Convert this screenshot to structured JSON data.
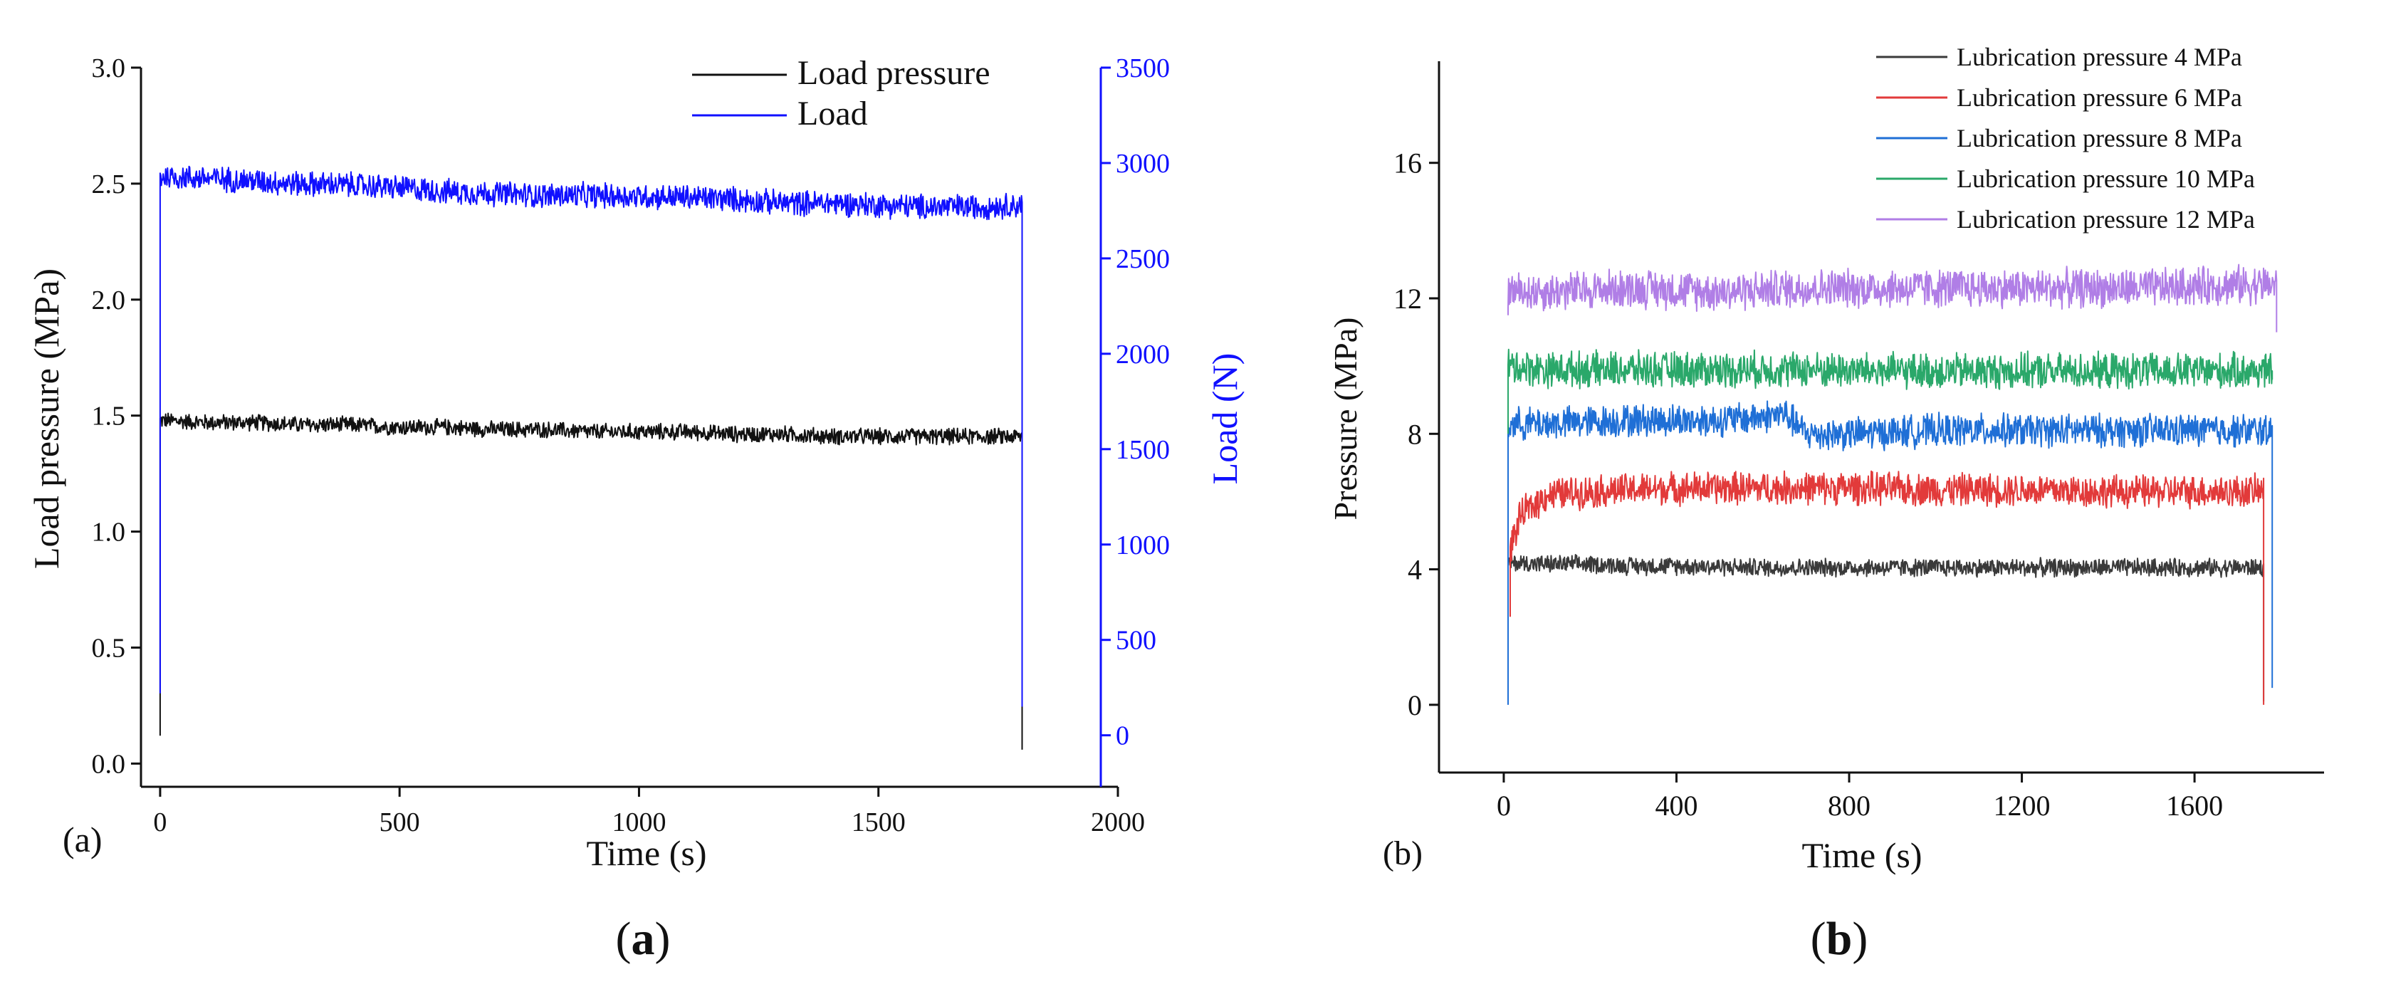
{
  "panel_labels": {
    "a_inner": "(a)",
    "b_inner": "(b)",
    "a_caption_letter": "a",
    "b_caption_letter": "b",
    "open_paren": "(",
    "close_paren": ")"
  },
  "colors": {
    "load_pressure": "#111111",
    "load": "#1010ff",
    "lub4": "#3a3a3a",
    "lub6": "#e23a3a",
    "lub8": "#1f6fd6",
    "lub10": "#2aa86a",
    "lub12": "#b07ee6",
    "right_axis": "#1010ff"
  },
  "chart_data": [
    {
      "id": "a",
      "type": "line",
      "title": "",
      "xlabel": "Time (s)",
      "ylabel": "Load pressure (MPa)",
      "y2label": "Load (N)",
      "xlim": [
        -40,
        2000
      ],
      "ylim": [
        -0.1,
        3.0
      ],
      "y2lim": [
        -270,
        3500
      ],
      "xticks": [
        0,
        500,
        1000,
        1500,
        2000
      ],
      "yticks": [
        0.0,
        0.5,
        1.0,
        1.5,
        2.0,
        2.5,
        3.0
      ],
      "ytick_labels": [
        "0.0",
        "0.5",
        "1.0",
        "1.5",
        "2.0",
        "2.5",
        "3.0"
      ],
      "y2ticks": [
        0,
        500,
        1000,
        1500,
        2000,
        2500,
        3000,
        3500
      ],
      "legend_position": "top-right",
      "series": [
        {
          "name": "Load pressure",
          "axis": "left",
          "color_key": "load_pressure",
          "x": [
            0,
            100,
            200,
            300,
            400,
            500,
            600,
            700,
            800,
            900,
            1000,
            1100,
            1200,
            1300,
            1400,
            1500,
            1600,
            1700,
            1800
          ],
          "y": [
            1.48,
            1.47,
            1.47,
            1.46,
            1.46,
            1.45,
            1.45,
            1.44,
            1.44,
            1.43,
            1.43,
            1.43,
            1.42,
            1.42,
            1.41,
            1.41,
            1.41,
            1.41,
            1.41
          ],
          "noise": 0.04,
          "start_value": 0.12,
          "end_value": 0.06
        },
        {
          "name": "Load",
          "axis": "right",
          "color_key": "load",
          "x": [
            0,
            100,
            200,
            300,
            400,
            500,
            600,
            700,
            800,
            900,
            1000,
            1100,
            1200,
            1300,
            1400,
            1500,
            1600,
            1700,
            1800
          ],
          "y": [
            2930,
            2920,
            2905,
            2890,
            2885,
            2870,
            2850,
            2840,
            2830,
            2830,
            2825,
            2820,
            2810,
            2790,
            2790,
            2780,
            2770,
            2770,
            2780
          ],
          "noise": 75,
          "start_value": 220,
          "end_value": 150
        }
      ]
    },
    {
      "id": "b",
      "type": "line",
      "title": "",
      "xlabel": "Time (s)",
      "ylabel": "Pressure (MPa)",
      "xlim": [
        -150,
        1900
      ],
      "ylim": [
        -2,
        19
      ],
      "xticks": [
        0,
        400,
        800,
        1200,
        1600
      ],
      "yticks": [
        0,
        4,
        8,
        12,
        16
      ],
      "legend_position": "top-right",
      "series": [
        {
          "name": "Lubrication pressure 4 MPa",
          "color_key": "lub4",
          "x": [
            10,
            100,
            200,
            300,
            400,
            600,
            800,
            1000,
            1200,
            1400,
            1600,
            1760
          ],
          "y": [
            4.2,
            4.15,
            4.15,
            4.1,
            4.1,
            4.05,
            4.05,
            4.05,
            4.05,
            4.05,
            4.05,
            4.05
          ],
          "noise": 0.3,
          "start_value": 2.6,
          "end_value": 0.1
        },
        {
          "name": "Lubrication pressure 6 MPa",
          "color_key": "lub6",
          "x": [
            15,
            40,
            100,
            200,
            300,
            400,
            600,
            800,
            1000,
            1200,
            1400,
            1600,
            1760
          ],
          "y": [
            4.6,
            5.6,
            6.2,
            6.3,
            6.35,
            6.4,
            6.4,
            6.4,
            6.35,
            6.35,
            6.3,
            6.3,
            6.3
          ],
          "noise": 0.55,
          "start_value": 2.6,
          "end_value": 0.0
        },
        {
          "name": "Lubrication pressure 8 MPa",
          "color_key": "lub8",
          "x": [
            10,
            100,
            300,
            500,
            600,
            650,
            700,
            800,
            1000,
            1200,
            1400,
            1600,
            1780
          ],
          "y": [
            8.3,
            8.3,
            8.4,
            8.4,
            8.5,
            8.6,
            8.0,
            8.0,
            8.1,
            8.1,
            8.1,
            8.1,
            8.1
          ],
          "noise": 0.55,
          "start_value": 0.0,
          "end_value": 0.5
        },
        {
          "name": "Lubrication pressure 10 MPa",
          "color_key": "lub10",
          "x": [
            10,
            100,
            300,
            500,
            700,
            900,
            1100,
            1300,
            1500,
            1700,
            1780
          ],
          "y": [
            10.0,
            9.9,
            9.9,
            9.9,
            9.9,
            9.85,
            9.85,
            9.85,
            9.85,
            9.85,
            9.85
          ],
          "noise": 0.6,
          "start_value": 8.0,
          "end_value": 9.6
        },
        {
          "name": "Lubrication pressure 12 MPa",
          "color_key": "lub12",
          "x": [
            10,
            100,
            300,
            500,
            700,
            900,
            1100,
            1300,
            1500,
            1700,
            1790
          ],
          "y": [
            12.2,
            12.2,
            12.3,
            12.2,
            12.3,
            12.3,
            12.3,
            12.3,
            12.3,
            12.4,
            12.4
          ],
          "noise": 0.65,
          "start_value": 11.5,
          "end_value": 11.0
        }
      ]
    }
  ]
}
